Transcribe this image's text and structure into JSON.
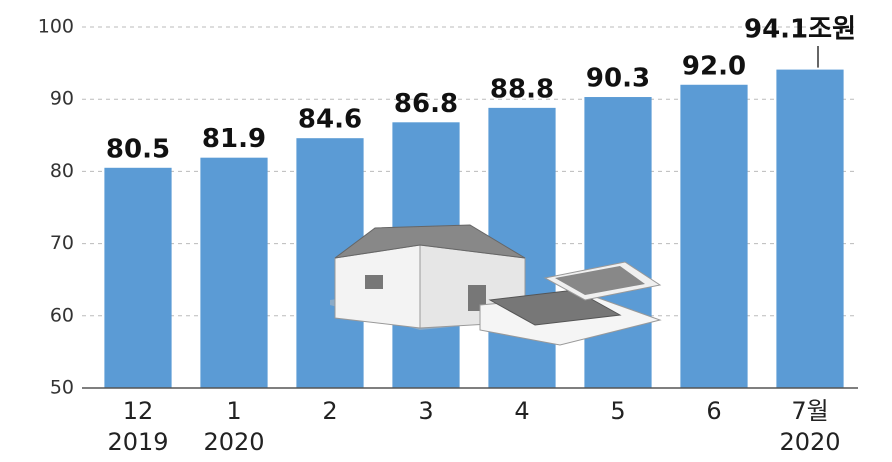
{
  "chart_data": {
    "type": "bar",
    "categories": [
      "12",
      "1",
      "2",
      "3",
      "4",
      "5",
      "6",
      "7월"
    ],
    "category_years": [
      "2019",
      "2020",
      null,
      null,
      null,
      null,
      null,
      "2020"
    ],
    "values": [
      80.5,
      81.9,
      84.6,
      86.8,
      88.8,
      90.3,
      92.0,
      94.1
    ],
    "value_labels": [
      "80.5",
      "81.9",
      "84.6",
      "86.8",
      "88.8",
      "90.3",
      "92.0",
      "94.1조원"
    ],
    "color": "#5b9bd5",
    "ylim": [
      50,
      100
    ],
    "yticks": [
      50,
      60,
      70,
      80,
      90,
      100
    ],
    "grid": true
  }
}
